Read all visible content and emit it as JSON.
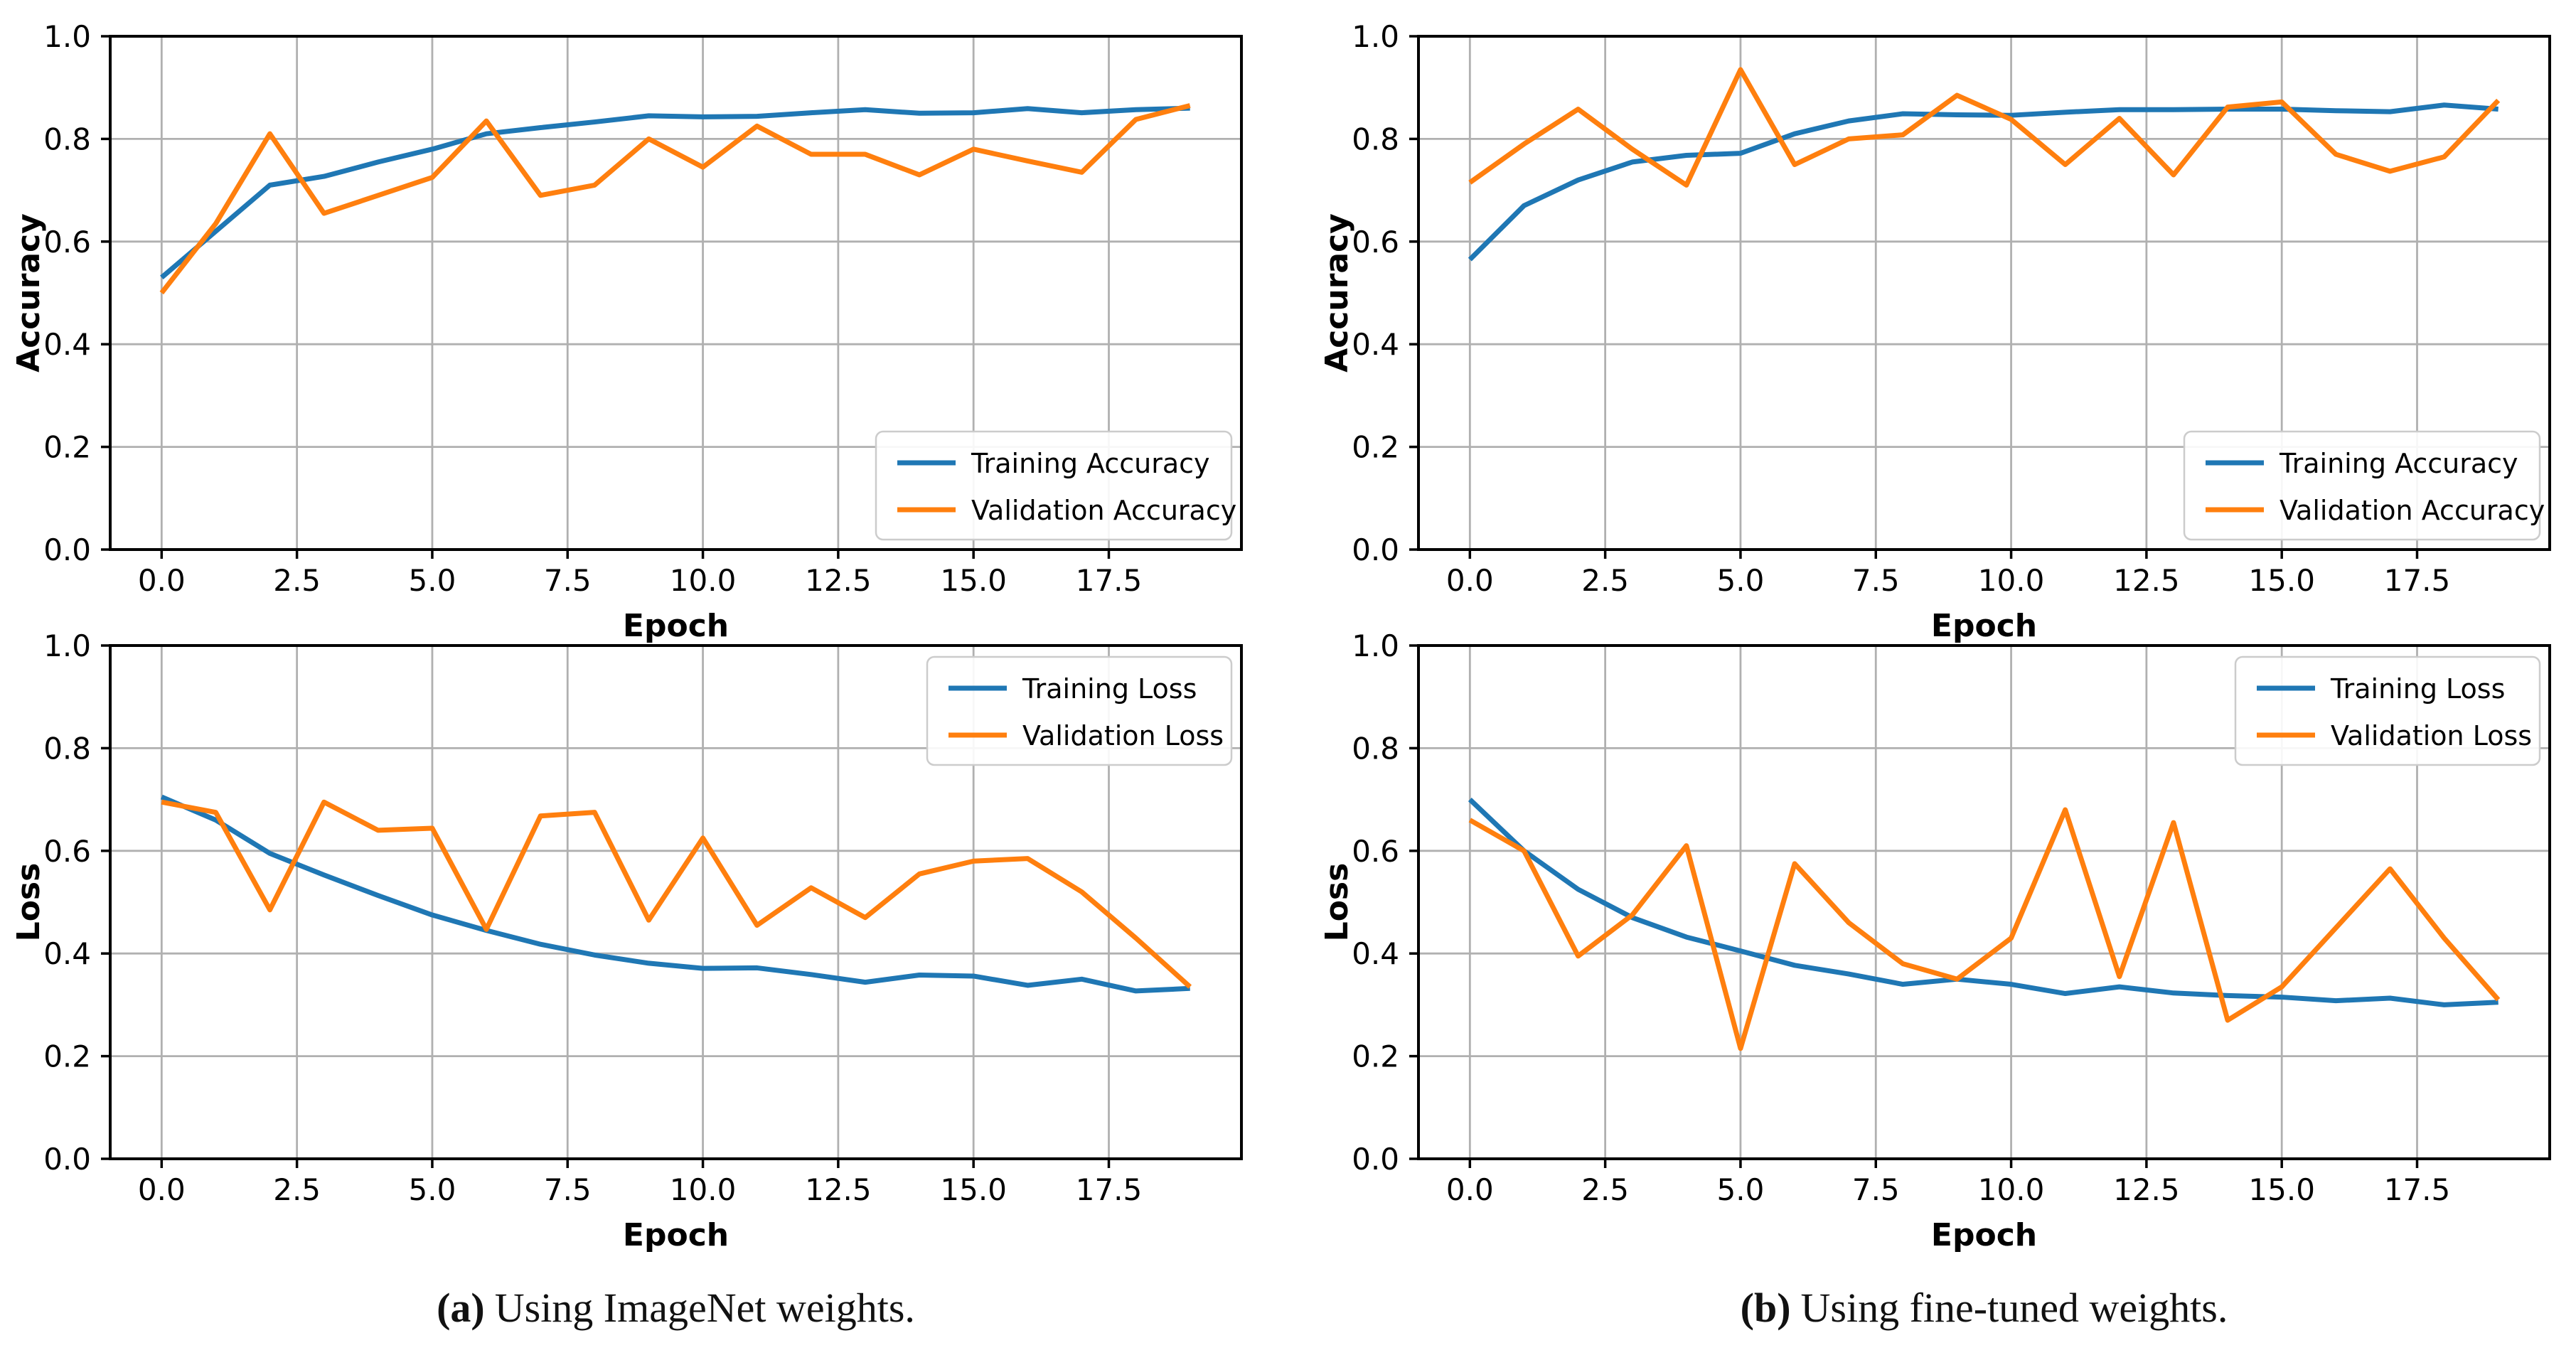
{
  "colors": {
    "training": "#1f77b4",
    "validation": "#ff7f0e",
    "grid": "#b0b0b0",
    "spine": "#000000",
    "tick": "#000000",
    "text": "#000000",
    "legend_border": "#cccccc",
    "legend_bg": "#ffffff",
    "background": "#ffffff"
  },
  "epochs": [
    0,
    1,
    2,
    3,
    4,
    5,
    6,
    7,
    8,
    9,
    10,
    11,
    12,
    13,
    14,
    15,
    16,
    17,
    18,
    19
  ],
  "chart_data": [
    {
      "id": "accuracy-imagenet",
      "type": "line",
      "title": "",
      "xlabel": "Epoch",
      "ylabel": "Accuracy",
      "xlim": [
        -0.95,
        19.95
      ],
      "ylim": [
        0,
        1
      ],
      "grid": true,
      "xticks": {
        "values": [
          0,
          2.5,
          5,
          7.5,
          10,
          12.5,
          15,
          17.5
        ],
        "labels": [
          "0.0",
          "2.5",
          "5.0",
          "7.5",
          "10.0",
          "12.5",
          "15.0",
          "17.5"
        ]
      },
      "yticks": {
        "values": [
          0,
          0.2,
          0.4,
          0.6,
          0.8,
          1.0
        ],
        "labels": [
          "0.0",
          "0.2",
          "0.4",
          "0.6",
          "0.8",
          "1.0"
        ]
      },
      "legend": {
        "position": "lower-right"
      },
      "series": [
        {
          "name": "Training Accuracy",
          "color_key": "training",
          "values": [
            0.53,
            0.62,
            0.71,
            0.727,
            0.755,
            0.78,
            0.81,
            0.822,
            0.833,
            0.845,
            0.843,
            0.844,
            0.851,
            0.857,
            0.85,
            0.851,
            0.859,
            0.851,
            0.857,
            0.86
          ]
        },
        {
          "name": "Validation Accuracy",
          "color_key": "validation",
          "values": [
            0.5,
            0.635,
            0.81,
            0.655,
            0.69,
            0.725,
            0.835,
            0.69,
            0.71,
            0.8,
            0.745,
            0.825,
            0.77,
            0.77,
            0.73,
            0.78,
            0.757,
            0.735,
            0.838,
            0.865
          ]
        }
      ]
    },
    {
      "id": "accuracy-finetuned",
      "type": "line",
      "title": "",
      "xlabel": "Epoch",
      "ylabel": "Accuracy",
      "xlim": [
        -0.95,
        19.95
      ],
      "ylim": [
        0,
        1
      ],
      "grid": true,
      "xticks": {
        "values": [
          0,
          2.5,
          5,
          7.5,
          10,
          12.5,
          15,
          17.5
        ],
        "labels": [
          "0.0",
          "2.5",
          "5.0",
          "7.5",
          "10.0",
          "12.5",
          "15.0",
          "17.5"
        ]
      },
      "yticks": {
        "values": [
          0,
          0.2,
          0.4,
          0.6,
          0.8,
          1.0
        ],
        "labels": [
          "0.0",
          "0.2",
          "0.4",
          "0.6",
          "0.8",
          "1.0"
        ]
      },
      "legend": {
        "position": "lower-right"
      },
      "series": [
        {
          "name": "Training Accuracy",
          "color_key": "training",
          "values": [
            0.565,
            0.67,
            0.72,
            0.755,
            0.768,
            0.772,
            0.81,
            0.835,
            0.849,
            0.847,
            0.846,
            0.852,
            0.857,
            0.857,
            0.858,
            0.858,
            0.855,
            0.853,
            0.866,
            0.858
          ]
        },
        {
          "name": "Validation Accuracy",
          "color_key": "validation",
          "values": [
            0.715,
            0.79,
            0.858,
            0.78,
            0.71,
            0.935,
            0.75,
            0.8,
            0.808,
            0.885,
            0.838,
            0.75,
            0.84,
            0.73,
            0.862,
            0.872,
            0.77,
            0.737,
            0.765,
            0.875
          ]
        }
      ]
    },
    {
      "id": "loss-imagenet",
      "type": "line",
      "title": "",
      "xlabel": "Epoch",
      "ylabel": "Loss",
      "xlim": [
        -0.95,
        19.95
      ],
      "ylim": [
        0,
        1
      ],
      "grid": true,
      "xticks": {
        "values": [
          0,
          2.5,
          5,
          7.5,
          10,
          12.5,
          15,
          17.5
        ],
        "labels": [
          "0.0",
          "2.5",
          "5.0",
          "7.5",
          "10.0",
          "12.5",
          "15.0",
          "17.5"
        ]
      },
      "yticks": {
        "values": [
          0,
          0.2,
          0.4,
          0.6,
          0.8,
          1.0
        ],
        "labels": [
          "0.0",
          "0.2",
          "0.4",
          "0.6",
          "0.8",
          "1.0"
        ]
      },
      "legend": {
        "position": "upper-right"
      },
      "series": [
        {
          "name": "Training Loss",
          "color_key": "training",
          "values": [
            0.705,
            0.66,
            0.595,
            0.553,
            0.513,
            0.475,
            0.445,
            0.418,
            0.397,
            0.381,
            0.371,
            0.372,
            0.359,
            0.344,
            0.358,
            0.356,
            0.338,
            0.35,
            0.327,
            0.332
          ]
        },
        {
          "name": "Validation Loss",
          "color_key": "validation",
          "values": [
            0.695,
            0.675,
            0.485,
            0.695,
            0.64,
            0.644,
            0.447,
            0.668,
            0.675,
            0.465,
            0.625,
            0.455,
            0.528,
            0.47,
            0.555,
            0.58,
            0.585,
            0.52,
            0.43,
            0.335
          ]
        }
      ]
    },
    {
      "id": "loss-finetuned",
      "type": "line",
      "title": "",
      "xlabel": "Epoch",
      "ylabel": "Loss",
      "xlim": [
        -0.95,
        19.95
      ],
      "ylim": [
        0,
        1
      ],
      "grid": true,
      "xticks": {
        "values": [
          0,
          2.5,
          5,
          7.5,
          10,
          12.5,
          15,
          17.5
        ],
        "labels": [
          "0.0",
          "2.5",
          "5.0",
          "7.5",
          "10.0",
          "12.5",
          "15.0",
          "17.5"
        ]
      },
      "yticks": {
        "values": [
          0,
          0.2,
          0.4,
          0.6,
          0.8,
          1.0
        ],
        "labels": [
          "0.0",
          "0.2",
          "0.4",
          "0.6",
          "0.8",
          "1.0"
        ]
      },
      "legend": {
        "position": "upper-right"
      },
      "series": [
        {
          "name": "Training Loss",
          "color_key": "training",
          "values": [
            0.7,
            0.6,
            0.525,
            0.47,
            0.432,
            0.405,
            0.377,
            0.36,
            0.34,
            0.35,
            0.34,
            0.322,
            0.335,
            0.323,
            0.318,
            0.315,
            0.308,
            0.313,
            0.3,
            0.305
          ]
        },
        {
          "name": "Validation Loss",
          "color_key": "validation",
          "values": [
            0.66,
            0.6,
            0.395,
            0.475,
            0.61,
            0.215,
            0.575,
            0.46,
            0.38,
            0.35,
            0.43,
            0.68,
            0.355,
            0.655,
            0.27,
            0.335,
            0.45,
            0.565,
            0.43,
            0.31
          ]
        }
      ]
    }
  ],
  "captions": [
    {
      "label": "(a)",
      "text": "Using ImageNet weights."
    },
    {
      "label": "(b)",
      "text": "Using fine-tuned weights."
    }
  ]
}
